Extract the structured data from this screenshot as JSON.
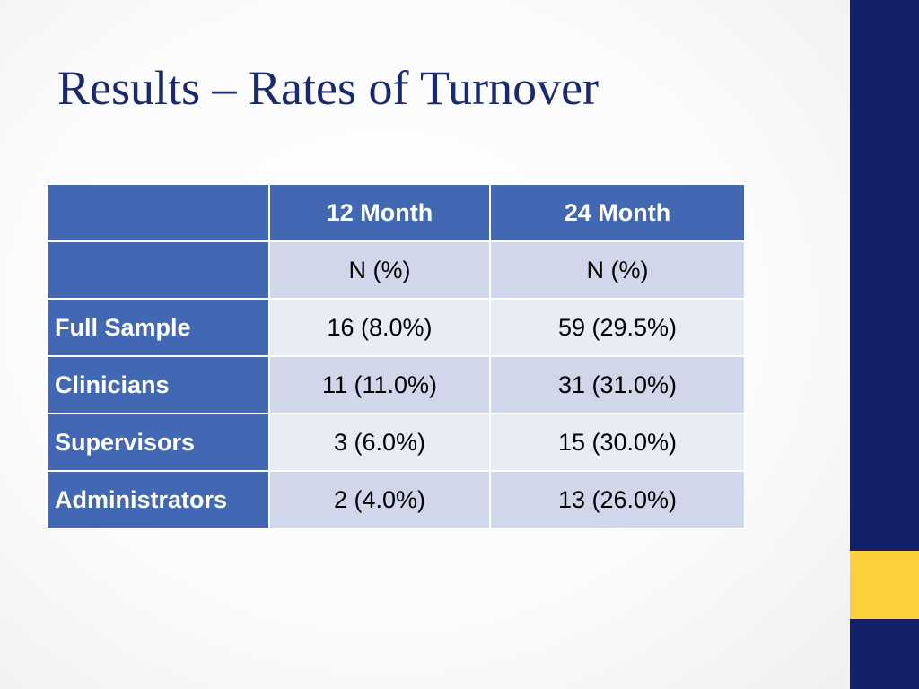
{
  "slide": {
    "title": "Results – Rates of Turnover"
  },
  "table": {
    "headers": [
      "",
      "12 Month",
      "24 Month"
    ],
    "subheader": [
      "",
      "N (%)",
      "N (%)"
    ],
    "rows": [
      {
        "label": "Full Sample",
        "month12": "16 (8.0%)",
        "month24": "59 (29.5%)"
      },
      {
        "label": "Clinicians",
        "month12": "11 (11.0%)",
        "month24": "31 (31.0%)"
      },
      {
        "label": "Supervisors",
        "month12": "3 (6.0%)",
        "month24": "15 (30.0%)"
      },
      {
        "label": "Administrators",
        "month12": "2 (4.0%)",
        "month24": "13 (26.0%)"
      }
    ]
  },
  "colors": {
    "title": "#1b2a70",
    "header_fill": "#4268b3",
    "row_fill_dark": "#d0d7ea",
    "row_fill_light": "#e9ecf4",
    "side_bar": "#13216a",
    "side_accent": "#fdd03a"
  }
}
